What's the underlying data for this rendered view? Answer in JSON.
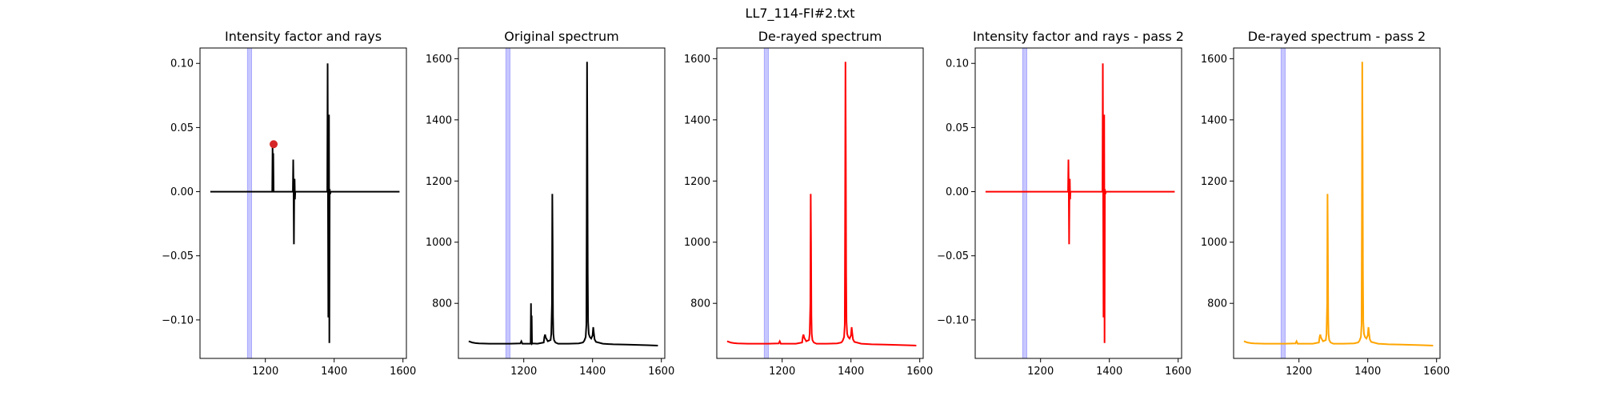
{
  "figure": {
    "suptitle": "LL7_114-FI#2.txt"
  },
  "chart_data": [
    {
      "type": "line",
      "title": "Intensity factor and rays",
      "xlabel": "",
      "ylabel": "",
      "xlim": [
        1010,
        1610
      ],
      "ylim": [
        -0.13,
        0.112
      ],
      "xticks": [
        1200,
        1400,
        1600
      ],
      "yticks": [
        -0.1,
        -0.05,
        0.0,
        0.05,
        0.1
      ],
      "ytick_labels": [
        "−0.10",
        "−0.05",
        "0.00",
        "0.05",
        "0.10"
      ],
      "grid": false,
      "band": {
        "x": [
          1148,
          1160
        ],
        "color": "#0000ff",
        "opacity": 0.22
      },
      "series": [
        {
          "color": "#000000",
          "x": [
            1040,
            1220,
            1221,
            1222,
            1223,
            1224,
            1280,
            1281,
            1282,
            1283,
            1284,
            1285,
            1286,
            1287,
            1288,
            1380,
            1381,
            1382,
            1383,
            1384,
            1385,
            1386,
            1387,
            1388,
            1390,
            1590
          ],
          "y": [
            0.0,
            0.0,
            0.035,
            0.0,
            0.03,
            0.0,
            0.0,
            0.025,
            0.0,
            -0.041,
            0.0,
            0.01,
            -0.006,
            0.0,
            0.0,
            0.0,
            0.1,
            0.0,
            -0.098,
            0.0,
            0.06,
            -0.118,
            0.002,
            -0.002,
            0.0,
            0.0
          ]
        }
      ],
      "marker": {
        "x": 1224,
        "y": 0.037,
        "color": "#d62728"
      }
    },
    {
      "type": "line",
      "title": "Original spectrum",
      "xlabel": "",
      "ylabel": "",
      "xlim": [
        1010,
        1610
      ],
      "ylim": [
        620,
        1635
      ],
      "xticks": [
        1200,
        1400,
        1600
      ],
      "yticks": [
        800,
        1000,
        1200,
        1400,
        1600
      ],
      "grid": false,
      "band": {
        "x": [
          1148,
          1160
        ],
        "color": "#0000ff",
        "opacity": 0.22
      },
      "series": [
        {
          "color": "#000000",
          "x": [
            1040,
            1050,
            1060,
            1070,
            1100,
            1130,
            1160,
            1190,
            1193,
            1196,
            1210,
            1220,
            1221,
            1222,
            1223,
            1224,
            1225,
            1240,
            1258,
            1260,
            1262,
            1264,
            1270,
            1278,
            1280,
            1282,
            1283,
            1284,
            1285,
            1286,
            1288,
            1292,
            1300,
            1330,
            1360,
            1372,
            1376,
            1380,
            1382,
            1383,
            1384,
            1385,
            1386,
            1387,
            1389,
            1392,
            1396,
            1400,
            1402,
            1404,
            1406,
            1410,
            1430,
            1460,
            1500,
            1530,
            1560,
            1590
          ],
          "y": [
            676,
            672,
            670,
            669,
            668,
            668,
            668,
            669,
            676,
            668,
            668,
            668,
            800,
            668,
            760,
            668,
            669,
            668,
            672,
            690,
            698,
            688,
            676,
            680,
            700,
            800,
            1158,
            990,
            760,
            700,
            680,
            672,
            668,
            668,
            669,
            672,
            678,
            690,
            730,
            1100,
            1590,
            1300,
            900,
            740,
            700,
            690,
            685,
            695,
            722,
            700,
            682,
            674,
            668,
            666,
            665,
            664,
            663,
            662
          ]
        }
      ]
    },
    {
      "type": "line",
      "title": "De-rayed spectrum",
      "xlabel": "",
      "ylabel": "",
      "xlim": [
        1010,
        1610
      ],
      "ylim": [
        620,
        1635
      ],
      "xticks": [
        1200,
        1400,
        1600
      ],
      "yticks": [
        800,
        1000,
        1200,
        1400,
        1600
      ],
      "grid": false,
      "band": {
        "x": [
          1148,
          1160
        ],
        "color": "#0000ff",
        "opacity": 0.22
      },
      "series": [
        {
          "color": "#ff0000",
          "x": [
            1040,
            1050,
            1060,
            1070,
            1100,
            1130,
            1160,
            1190,
            1193,
            1196,
            1210,
            1240,
            1258,
            1260,
            1262,
            1264,
            1270,
            1278,
            1280,
            1282,
            1283,
            1284,
            1285,
            1286,
            1288,
            1292,
            1300,
            1330,
            1360,
            1372,
            1376,
            1380,
            1382,
            1383,
            1384,
            1385,
            1386,
            1387,
            1389,
            1392,
            1396,
            1400,
            1402,
            1404,
            1406,
            1410,
            1430,
            1460,
            1500,
            1530,
            1560,
            1590
          ],
          "y": [
            676,
            672,
            670,
            669,
            668,
            668,
            668,
            669,
            676,
            668,
            668,
            668,
            672,
            690,
            698,
            688,
            676,
            680,
            700,
            800,
            1158,
            990,
            760,
            700,
            680,
            672,
            668,
            668,
            669,
            672,
            678,
            690,
            730,
            1100,
            1590,
            1300,
            900,
            740,
            700,
            690,
            685,
            695,
            722,
            700,
            682,
            674,
            668,
            666,
            665,
            664,
            663,
            662
          ]
        }
      ]
    },
    {
      "type": "line",
      "title": "Intensity factor and rays - pass 2",
      "xlabel": "",
      "ylabel": "",
      "xlim": [
        1010,
        1610
      ],
      "ylim": [
        -0.13,
        0.112
      ],
      "xticks": [
        1200,
        1400,
        1600
      ],
      "yticks": [
        -0.1,
        -0.05,
        0.0,
        0.05,
        0.1
      ],
      "ytick_labels": [
        "−0.10",
        "−0.05",
        "0.00",
        "0.05",
        "0.10"
      ],
      "grid": false,
      "band": {
        "x": [
          1148,
          1160
        ],
        "color": "#0000ff",
        "opacity": 0.22
      },
      "series": [
        {
          "color": "#ff0000",
          "x": [
            1040,
            1280,
            1281,
            1282,
            1283,
            1284,
            1285,
            1286,
            1287,
            1288,
            1380,
            1381,
            1382,
            1383,
            1384,
            1385,
            1386,
            1387,
            1388,
            1390,
            1590
          ],
          "y": [
            0.0,
            0.0,
            0.025,
            0.0,
            -0.041,
            0.0,
            0.01,
            -0.006,
            0.0,
            0.0,
            0.0,
            0.1,
            0.0,
            -0.098,
            0.0,
            0.06,
            -0.118,
            0.002,
            -0.002,
            0.0,
            0.0
          ]
        }
      ]
    },
    {
      "type": "line",
      "title": "De-rayed spectrum - pass 2",
      "xlabel": "",
      "ylabel": "",
      "xlim": [
        1010,
        1610
      ],
      "ylim": [
        620,
        1635
      ],
      "xticks": [
        1200,
        1400,
        1600
      ],
      "yticks": [
        800,
        1000,
        1200,
        1400,
        1600
      ],
      "grid": false,
      "band": {
        "x": [
          1148,
          1160
        ],
        "color": "#0000ff",
        "opacity": 0.22
      },
      "series": [
        {
          "color": "#ffa500",
          "x": [
            1040,
            1050,
            1060,
            1070,
            1100,
            1130,
            1160,
            1190,
            1193,
            1196,
            1210,
            1240,
            1258,
            1260,
            1262,
            1264,
            1270,
            1278,
            1280,
            1282,
            1283,
            1284,
            1285,
            1286,
            1288,
            1292,
            1300,
            1330,
            1360,
            1372,
            1376,
            1380,
            1382,
            1383,
            1384,
            1385,
            1386,
            1387,
            1389,
            1392,
            1396,
            1400,
            1402,
            1404,
            1406,
            1410,
            1430,
            1460,
            1500,
            1530,
            1560,
            1590
          ],
          "y": [
            676,
            672,
            670,
            669,
            668,
            668,
            668,
            669,
            676,
            668,
            668,
            668,
            672,
            690,
            698,
            688,
            676,
            680,
            700,
            800,
            1158,
            990,
            760,
            700,
            680,
            672,
            668,
            668,
            669,
            672,
            678,
            690,
            730,
            1100,
            1590,
            1300,
            900,
            740,
            700,
            690,
            685,
            695,
            722,
            700,
            682,
            674,
            668,
            666,
            665,
            664,
            663,
            662
          ]
        }
      ]
    }
  ]
}
